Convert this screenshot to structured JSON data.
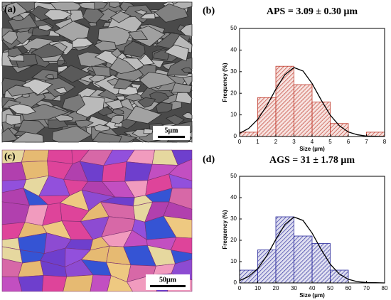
{
  "images": [
    {
      "label": "(a)",
      "scale_bar": "5μm"
    },
    {
      "label": "(c)",
      "scale_bar": "50μm"
    }
  ],
  "chart_data": [
    {
      "type": "histogram",
      "label": "(b)",
      "title": "APS = 3.09 ± 0.30 μm",
      "xlabel": "Size (μm)",
      "ylabel": "Frequency (%)",
      "bins": [
        0,
        1,
        2,
        3,
        4,
        5,
        6,
        7,
        8
      ],
      "values": [
        2,
        18,
        32.5,
        24,
        16,
        6,
        0,
        2
      ],
      "color": "#c0392b",
      "xlim": [
        0,
        8
      ],
      "ylim": [
        0,
        50
      ],
      "xticks": [
        0,
        1,
        2,
        3,
        4,
        5,
        6,
        7,
        8
      ],
      "yticks": [
        0,
        10,
        20,
        30,
        40,
        50
      ],
      "fit": {
        "color": "#000000",
        "x": [
          0,
          0.5,
          1,
          1.5,
          2,
          2.5,
          3,
          3.5,
          4,
          4.5,
          5,
          5.5,
          6,
          6.5,
          7,
          7.5,
          8
        ],
        "values": [
          1.5,
          3.7,
          7.9,
          14.2,
          21.9,
          28.6,
          31.9,
          30.3,
          24.5,
          16.9,
          9.9,
          5.0,
          2.1,
          0.8,
          0.2,
          0.1,
          0
        ]
      }
    },
    {
      "type": "histogram",
      "label": "(d)",
      "title": "AGS = 31 ± 1.78 μm",
      "xlabel": "Size (μm)",
      "ylabel": "Frequency (%)",
      "bins": [
        0,
        10,
        20,
        30,
        40,
        50,
        60
      ],
      "values": [
        6,
        15.5,
        31,
        22,
        18.5,
        6
      ],
      "color": "#2a2a9c",
      "xlim": [
        0,
        80
      ],
      "ylim": [
        0,
        50
      ],
      "xticks": [
        0,
        10,
        20,
        30,
        40,
        50,
        60,
        70,
        80
      ],
      "yticks": [
        0,
        10,
        20,
        30,
        40,
        50
      ],
      "fit": {
        "color": "#000000",
        "x": [
          0,
          5,
          10,
          15,
          20,
          25,
          30,
          35,
          40,
          45,
          50,
          55,
          60,
          65,
          70,
          75,
          80
        ],
        "values": [
          1.1,
          3.0,
          6.7,
          12.7,
          20.4,
          27.4,
          30.9,
          29.3,
          23.4,
          15.7,
          8.8,
          4.2,
          1.7,
          0.6,
          0.2,
          0.1,
          0
        ]
      }
    }
  ]
}
